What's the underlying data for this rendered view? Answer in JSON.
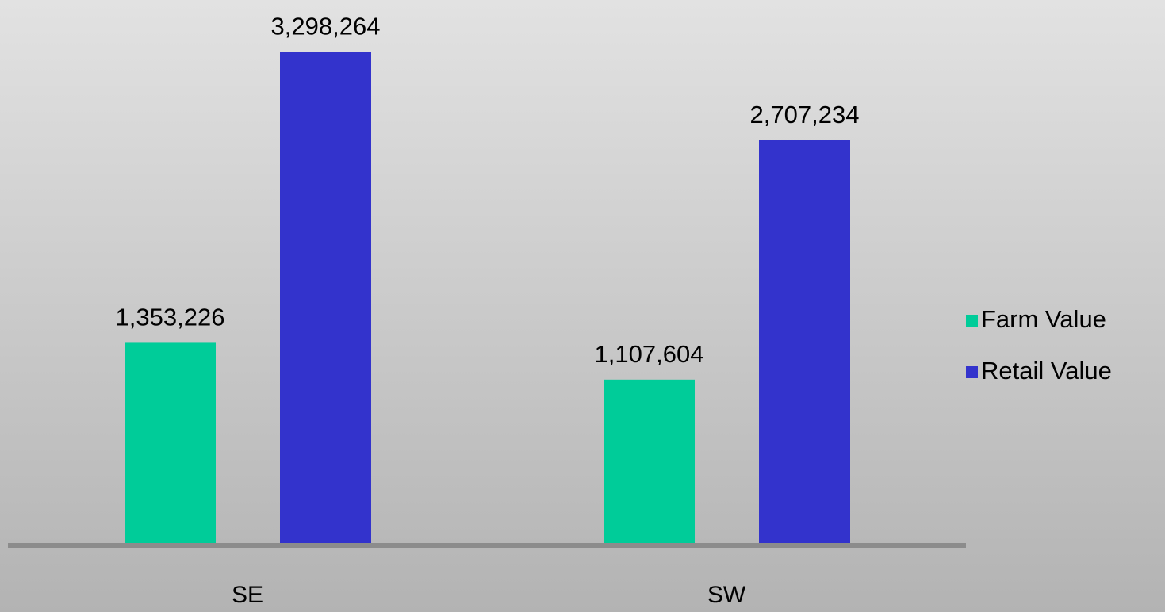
{
  "chart_data": {
    "type": "bar",
    "categories": [
      "SE",
      "SW"
    ],
    "series": [
      {
        "name": "Farm Value",
        "color": "#00cc99",
        "values": [
          1353226,
          1107604
        ],
        "value_labels": [
          "1,353,226",
          "1,107,604"
        ]
      },
      {
        "name": "Retail Value",
        "color": "#3333cc",
        "values": [
          3298264,
          2707234
        ],
        "value_labels": [
          "3,298,264",
          "2,707,234"
        ]
      }
    ],
    "ylim": [
      0,
      3500000
    ],
    "legend": "right"
  }
}
